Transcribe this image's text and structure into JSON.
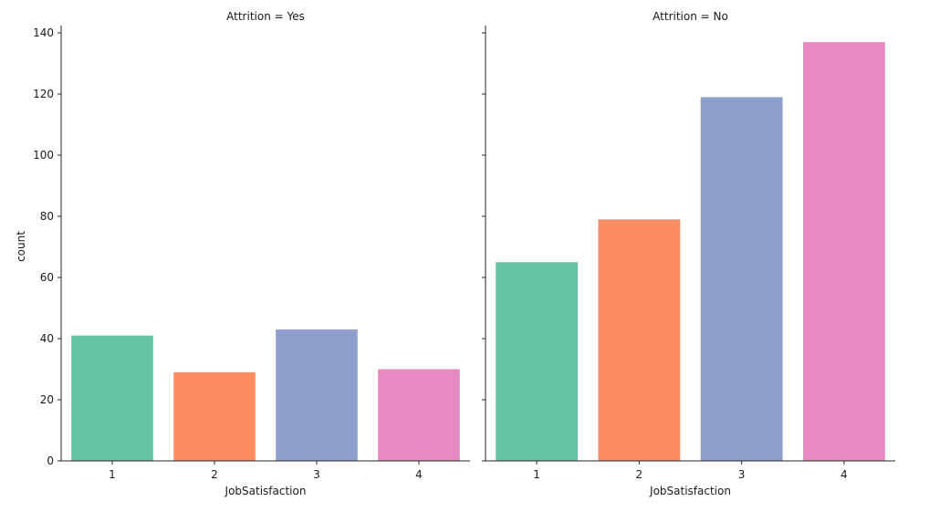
{
  "chart_data": {
    "type": "bar",
    "facet_variable": "Attrition",
    "categories": [
      "1",
      "2",
      "3",
      "4"
    ],
    "xlabel": "JobSatisfaction",
    "ylabel": "count",
    "ylim": [
      0,
      143
    ],
    "yticks": [
      0,
      20,
      40,
      60,
      80,
      100,
      120,
      140
    ],
    "grid": false,
    "legend": "none",
    "bar_colors": [
      "#66c2a5",
      "#fc8d62",
      "#8da0cb",
      "#e78ac3"
    ],
    "panels": [
      {
        "title": "Attrition = Yes",
        "values": [
          41,
          29,
          43,
          30
        ]
      },
      {
        "title": "Attrition = No",
        "values": [
          65,
          79,
          119,
          137
        ]
      }
    ]
  }
}
